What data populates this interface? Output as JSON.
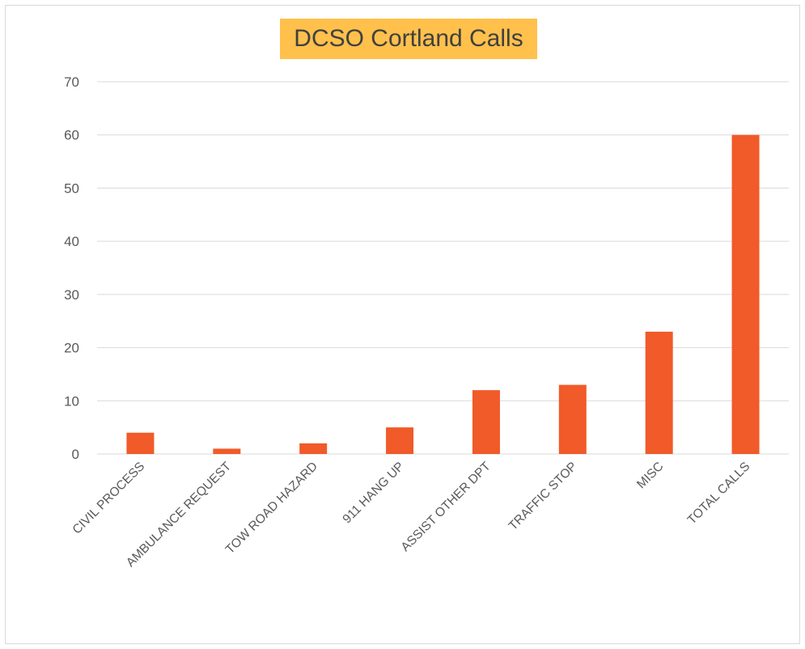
{
  "chart_data": {
    "type": "bar",
    "title": "DCSO Cortland Calls",
    "categories": [
      "CIVIL PROCESS",
      "AMBULANCE REQUEST",
      "TOW ROAD HAZARD",
      "911 HANG UP",
      "ASSIST OTHER DPT",
      "TRAFFIC STOP",
      "MISC",
      "TOTAL CALLS"
    ],
    "values": [
      4,
      1,
      2,
      5,
      12,
      13,
      23,
      60
    ],
    "ylim": [
      0,
      70
    ],
    "yticks": [
      0,
      10,
      20,
      30,
      40,
      50,
      60,
      70
    ],
    "grid": true,
    "legend": "none",
    "colors": {
      "bar": "#F15A29",
      "title_background": "#FFC04C",
      "gridline": "#d9d9d9",
      "axis_text": "#595959"
    }
  }
}
